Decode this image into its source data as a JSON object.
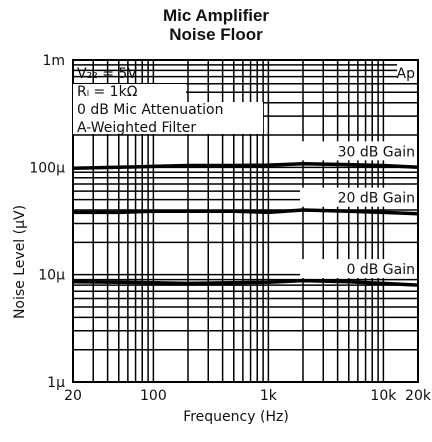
{
  "chart_data": {
    "type": "line",
    "title": "Mic Amplifier",
    "subtitle": "Noise Floor",
    "xlabel": "Frequency (Hz)",
    "ylabel": "Noise Level (μV)",
    "x_scale": "log",
    "y_scale": "log",
    "xlim": [
      20,
      20000
    ],
    "ylim": [
      1,
      1000
    ],
    "grid": true,
    "x_ticks": [
      {
        "value": 20,
        "label": "20"
      },
      {
        "value": 100,
        "label": "100"
      },
      {
        "value": 1000,
        "label": "1k"
      },
      {
        "value": 10000,
        "label": "10k"
      },
      {
        "value": 20000,
        "label": "20k"
      }
    ],
    "y_ticks": [
      {
        "value": 1000,
        "label": "1m"
      },
      {
        "value": 100,
        "label": "100μ"
      },
      {
        "value": 10,
        "label": "10μ"
      },
      {
        "value": 1,
        "label": "1μ"
      }
    ],
    "conditions": [
      "V₂₂ = 5V",
      "Rₗ = 1kΩ",
      "0 dB Mic Attenuation",
      "A-Weighted Filter"
    ],
    "logo": "Ap",
    "series": [
      {
        "name": "30 dB Gain",
        "x": [
          20,
          50,
          100,
          200,
          500,
          1000,
          2000,
          5000,
          10000,
          20000
        ],
        "y": [
          98,
          100,
          102,
          104,
          104,
          105,
          108,
          106,
          104,
          100
        ]
      },
      {
        "name": "20 dB Gain",
        "x": [
          20,
          50,
          100,
          200,
          500,
          1000,
          2000,
          5000,
          10000,
          20000
        ],
        "y": [
          38,
          38,
          39,
          39,
          39,
          38,
          40,
          39,
          38,
          37
        ]
      },
      {
        "name": "0 dB Gain",
        "x": [
          20,
          50,
          100,
          200,
          500,
          1000,
          2000,
          5000,
          10000,
          20000
        ],
        "y": [
          8.6,
          8.5,
          8.4,
          8.3,
          8.4,
          8.5,
          8.8,
          8.6,
          8.3,
          8.0
        ]
      }
    ]
  }
}
